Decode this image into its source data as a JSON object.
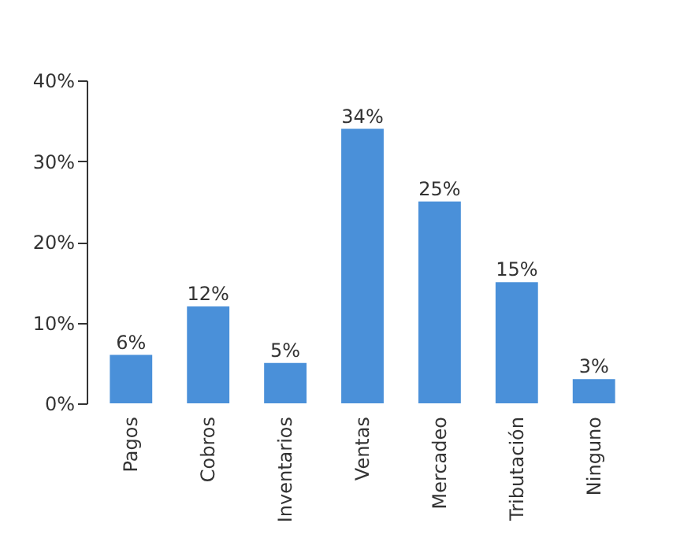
{
  "chart_data": {
    "type": "bar",
    "categories": [
      "Pagos",
      "Cobros",
      "Inventarios",
      "Ventas",
      "Mercadeo",
      "Tributación",
      "Ninguno"
    ],
    "values": [
      6,
      12,
      5,
      34,
      25,
      15,
      3
    ],
    "value_labels": [
      "6%",
      "12%",
      "5%",
      "34%",
      "25%",
      "15%",
      "3%"
    ],
    "color": "#4a90d9",
    "ylim": [
      0,
      40
    ],
    "yticks": [
      {
        "value": 0,
        "label": "0%"
      },
      {
        "value": 10,
        "label": "10%"
      },
      {
        "value": 20,
        "label": "20%"
      },
      {
        "value": 30,
        "label": "30%"
      },
      {
        "value": 40,
        "label": "40%"
      }
    ],
    "grid": false
  }
}
